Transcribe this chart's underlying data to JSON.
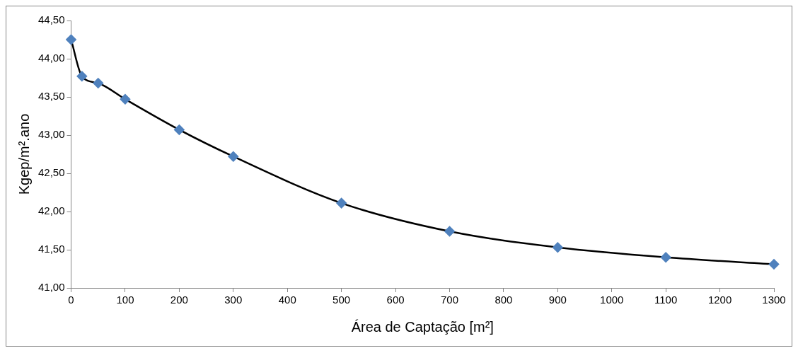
{
  "chart_data": {
    "type": "line",
    "xlabel": "Área de Captação [m²]",
    "ylabel": "Kgep/m².ano",
    "x": [
      0,
      20,
      50,
      100,
      200,
      300,
      500,
      700,
      900,
      1100,
      1300
    ],
    "series": [
      {
        "color": "#4f81bd",
        "values": [
          44.25,
          43.77,
          43.68,
          43.47,
          43.07,
          42.72,
          42.11,
          41.74,
          41.53,
          41.4,
          41.31
        ]
      }
    ],
    "marker": "diamond",
    "line_style": "solid",
    "grid": false,
    "legend": false,
    "xlim": [
      0,
      1300
    ],
    "xticks": [
      0,
      100,
      200,
      300,
      400,
      500,
      600,
      700,
      800,
      900,
      1000,
      1100,
      1200,
      1300
    ],
    "ylim": [
      41,
      44.5
    ],
    "yticks": [
      {
        "value": 41,
        "label": "41,00"
      },
      {
        "value": 41.5,
        "label": "41,50"
      },
      {
        "value": 42,
        "label": "42,00"
      },
      {
        "value": 42.5,
        "label": "42,50"
      },
      {
        "value": 43,
        "label": "43,00"
      },
      {
        "value": 43.5,
        "label": "43,50"
      },
      {
        "value": 44,
        "label": "44,00"
      },
      {
        "value": 44.5,
        "label": "44,50"
      }
    ]
  }
}
